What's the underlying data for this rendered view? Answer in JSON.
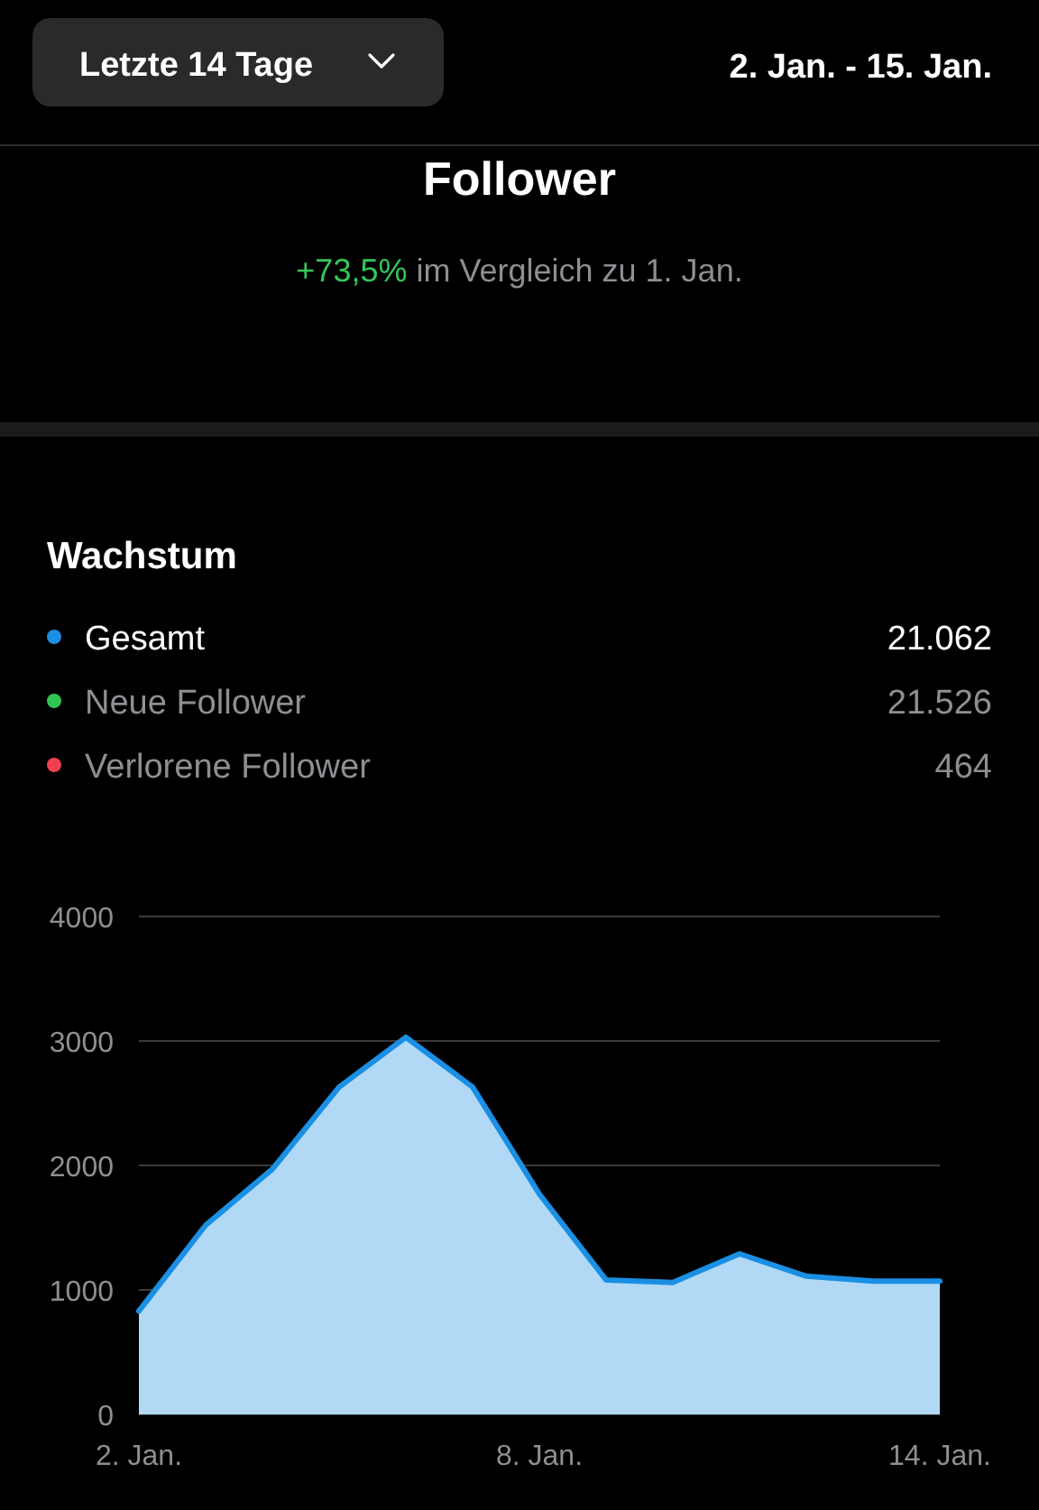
{
  "chart_data": {
    "type": "area",
    "title": "Follower",
    "subtitle": "+73,5% im Vergleich zu 1. Jan.",
    "annotations": [
      "Letzte 14 Tage",
      "2. Jan. - 15. Jan.",
      "Wachstum",
      "21.062",
      "21.526",
      "464"
    ],
    "categories": [
      "2. Jan.",
      null,
      null,
      null,
      null,
      null,
      "8. Jan.",
      null,
      null,
      null,
      null,
      null,
      "14. Jan."
    ],
    "series": [
      {
        "name": "Gesamt",
        "color": "#1a8fe3",
        "values": [
          830,
          1520,
          1970,
          2630,
          3030,
          2630,
          1770,
          1080,
          1060,
          1290,
          1110,
          1070,
          1070
        ]
      },
      {
        "name": "Neue Follower",
        "color": "#30c552",
        "values": [
          null,
          null,
          null,
          null,
          null,
          null,
          null,
          null,
          null,
          null,
          null,
          null,
          null
        ]
      },
      {
        "name": "Verlorene Follower",
        "color": "#f0404f",
        "values": [
          null,
          null,
          null,
          null,
          null,
          null,
          null,
          null,
          null,
          null,
          null,
          null,
          null
        ]
      }
    ],
    "ylim": [
      0,
      4000
    ],
    "yticks": [
      0,
      1000,
      2000,
      3000,
      4000
    ],
    "grid": "y",
    "legend": "top"
  }
}
